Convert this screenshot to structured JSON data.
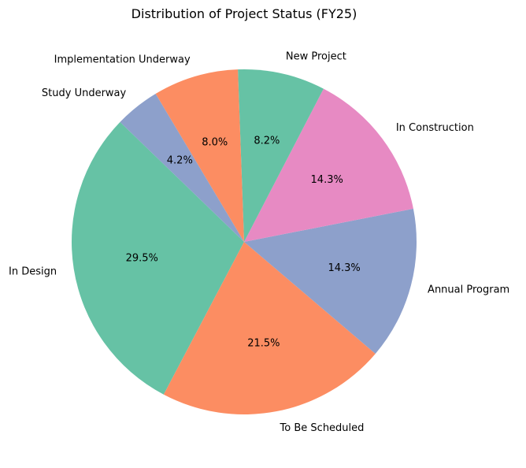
{
  "chart_data": {
    "type": "pie",
    "title": "Distribution of Project Status (FY25)",
    "start_angle_deg": 136,
    "direction": "counterclockwise",
    "slices": [
      {
        "label": "In Design",
        "value": 29.5,
        "pct_label": "29.5%",
        "color": "#66c2a5"
      },
      {
        "label": "To Be Scheduled",
        "value": 21.5,
        "pct_label": "21.5%",
        "color": "#fc8d62"
      },
      {
        "label": "Annual Program",
        "value": 14.3,
        "pct_label": "14.3%",
        "color": "#8da0cb"
      },
      {
        "label": "In Construction",
        "value": 14.3,
        "pct_label": "14.3%",
        "color": "#e78ac3"
      },
      {
        "label": "New Project",
        "value": 8.2,
        "pct_label": "8.2%",
        "color": "#66c2a5"
      },
      {
        "label": "Implementation Underway",
        "value": 8.0,
        "pct_label": "8.0%",
        "color": "#fc8d62"
      },
      {
        "label": "Study Underway",
        "value": 4.2,
        "pct_label": "4.2%",
        "color": "#8da0cb"
      }
    ]
  }
}
